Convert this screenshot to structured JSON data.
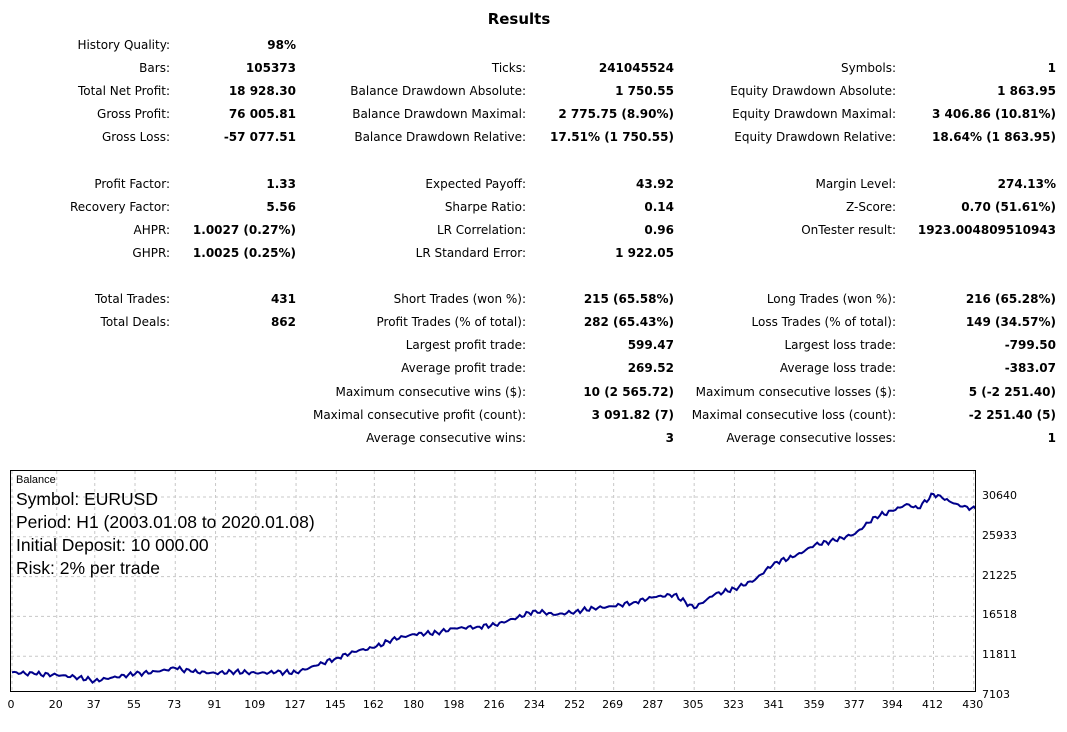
{
  "title": "Results",
  "col1": [
    {
      "label": "History Quality:",
      "value": "98%",
      "row": 0
    },
    {
      "label": "Bars:",
      "value": "105373",
      "row": 1
    },
    {
      "label": "Total Net Profit:",
      "value": "18 928.30",
      "row": 2
    },
    {
      "label": "Gross Profit:",
      "value": "76 005.81",
      "row": 3
    },
    {
      "label": "Gross Loss:",
      "value": "-57 077.51",
      "row": 4
    },
    {
      "label": "Profit Factor:",
      "value": "1.33",
      "row": 6
    },
    {
      "label": "Recovery Factor:",
      "value": "5.56",
      "row": 7
    },
    {
      "label": "AHPR:",
      "value": "1.0027 (0.27%)",
      "row": 8
    },
    {
      "label": "GHPR:",
      "value": "1.0025 (0.25%)",
      "row": 9
    },
    {
      "label": "Total Trades:",
      "value": "431",
      "row": 11
    },
    {
      "label": "Total Deals:",
      "value": "862",
      "row": 12
    }
  ],
  "col2": [
    {
      "label": "Ticks:",
      "value": "241045524",
      "row": 1
    },
    {
      "label": "Balance Drawdown Absolute:",
      "value": "1 750.55",
      "row": 2
    },
    {
      "label": "Balance Drawdown Maximal:",
      "value": "2 775.75 (8.90%)",
      "row": 3
    },
    {
      "label": "Balance Drawdown Relative:",
      "value": "17.51% (1 750.55)",
      "row": 4
    },
    {
      "label": "Expected Payoff:",
      "value": "43.92",
      "row": 6
    },
    {
      "label": "Sharpe Ratio:",
      "value": "0.14",
      "row": 7
    },
    {
      "label": "LR Correlation:",
      "value": "0.96",
      "row": 8
    },
    {
      "label": "LR Standard Error:",
      "value": "1 922.05",
      "row": 9
    },
    {
      "label": "Short Trades (won %):",
      "value": "215 (65.58%)",
      "row": 11
    },
    {
      "label": "Profit Trades (% of total):",
      "value": "282 (65.43%)",
      "row": 12
    },
    {
      "label": "Largest profit trade:",
      "value": "599.47",
      "row": 13
    },
    {
      "label": "Average profit trade:",
      "value": "269.52",
      "row": 14
    },
    {
      "label": "Maximum consecutive wins ($):",
      "value": "10 (2 565.72)",
      "row": 15
    },
    {
      "label": "Maximal consecutive profit (count):",
      "value": "3 091.82 (7)",
      "row": 16
    },
    {
      "label": "Average consecutive wins:",
      "value": "3",
      "row": 17
    }
  ],
  "col3": [
    {
      "label": "Symbols:",
      "value": "1",
      "row": 1
    },
    {
      "label": "Equity Drawdown Absolute:",
      "value": "1 863.95",
      "row": 2
    },
    {
      "label": "Equity Drawdown Maximal:",
      "value": "3 406.86 (10.81%)",
      "row": 3
    },
    {
      "label": "Equity Drawdown Relative:",
      "value": "18.64% (1 863.95)",
      "row": 4
    },
    {
      "label": "Margin Level:",
      "value": "274.13%",
      "row": 6
    },
    {
      "label": "Z-Score:",
      "value": "0.70 (51.61%)",
      "row": 7
    },
    {
      "label": "OnTester result:",
      "value": "1923.004809510943",
      "row": 8
    },
    {
      "label": "Long Trades (won %):",
      "value": "216 (65.28%)",
      "row": 11
    },
    {
      "label": "Loss Trades (% of total):",
      "value": "149 (34.57%)",
      "row": 12
    },
    {
      "label": "Largest loss trade:",
      "value": "-799.50",
      "row": 13
    },
    {
      "label": "Average loss trade:",
      "value": "-383.07",
      "row": 14
    },
    {
      "label": "Maximum consecutive losses ($):",
      "value": "5 (-2 251.40)",
      "row": 15
    },
    {
      "label": "Maximal consecutive loss (count):",
      "value": "-2 251.40 (5)",
      "row": 16
    },
    {
      "label": "Average consecutive losses:",
      "value": "1",
      "row": 17
    }
  ],
  "chart": {
    "title": "Balance",
    "info": [
      "Symbol: EURUSD",
      "Period: H1 (2003.01.08 to 2020.01.08)",
      "Initial Deposit: 10 000.00",
      "Risk: 2% per trade"
    ],
    "line_color": "#00008b"
  },
  "chart_data": {
    "type": "line",
    "title": "Balance",
    "xlabel": "",
    "ylabel": "",
    "x_ticks": [
      0,
      20,
      37,
      55,
      73,
      91,
      109,
      127,
      145,
      162,
      180,
      198,
      216,
      234,
      252,
      269,
      287,
      305,
      323,
      341,
      359,
      377,
      394,
      412,
      430
    ],
    "y_ticks": [
      7103,
      11811,
      16518,
      21225,
      25933,
      30640
    ],
    "xlim": [
      0,
      431
    ],
    "ylim": [
      7103,
      30640
    ],
    "grid": true,
    "series": [
      {
        "x": [
          0,
          10,
          20,
          30,
          37,
          45,
          55,
          65,
          73,
          80,
          91,
          100,
          109,
          118,
          127,
          136,
          145,
          155,
          162,
          170,
          180,
          190,
          198,
          208,
          216,
          226,
          234,
          243,
          252,
          260,
          269,
          278,
          287,
          296,
          305,
          314,
          323,
          332,
          341,
          350,
          359,
          368,
          377,
          386,
          394,
          400,
          405,
          412,
          416,
          420,
          425,
          431
        ],
        "y": [
          9900,
          9700,
          9600,
          9300,
          8900,
          9300,
          9700,
          10000,
          10400,
          10000,
          9800,
          10000,
          9800,
          9900,
          9900,
          10700,
          11600,
          12500,
          12800,
          13800,
          14400,
          14600,
          15100,
          15300,
          15500,
          16400,
          17200,
          16700,
          17100,
          17500,
          17700,
          18200,
          18800,
          19100,
          17500,
          19100,
          19800,
          20800,
          22900,
          23600,
          25000,
          25500,
          26300,
          28300,
          29000,
          29800,
          29300,
          31000,
          30500,
          30000,
          29500,
          29200
        ]
      }
    ]
  }
}
